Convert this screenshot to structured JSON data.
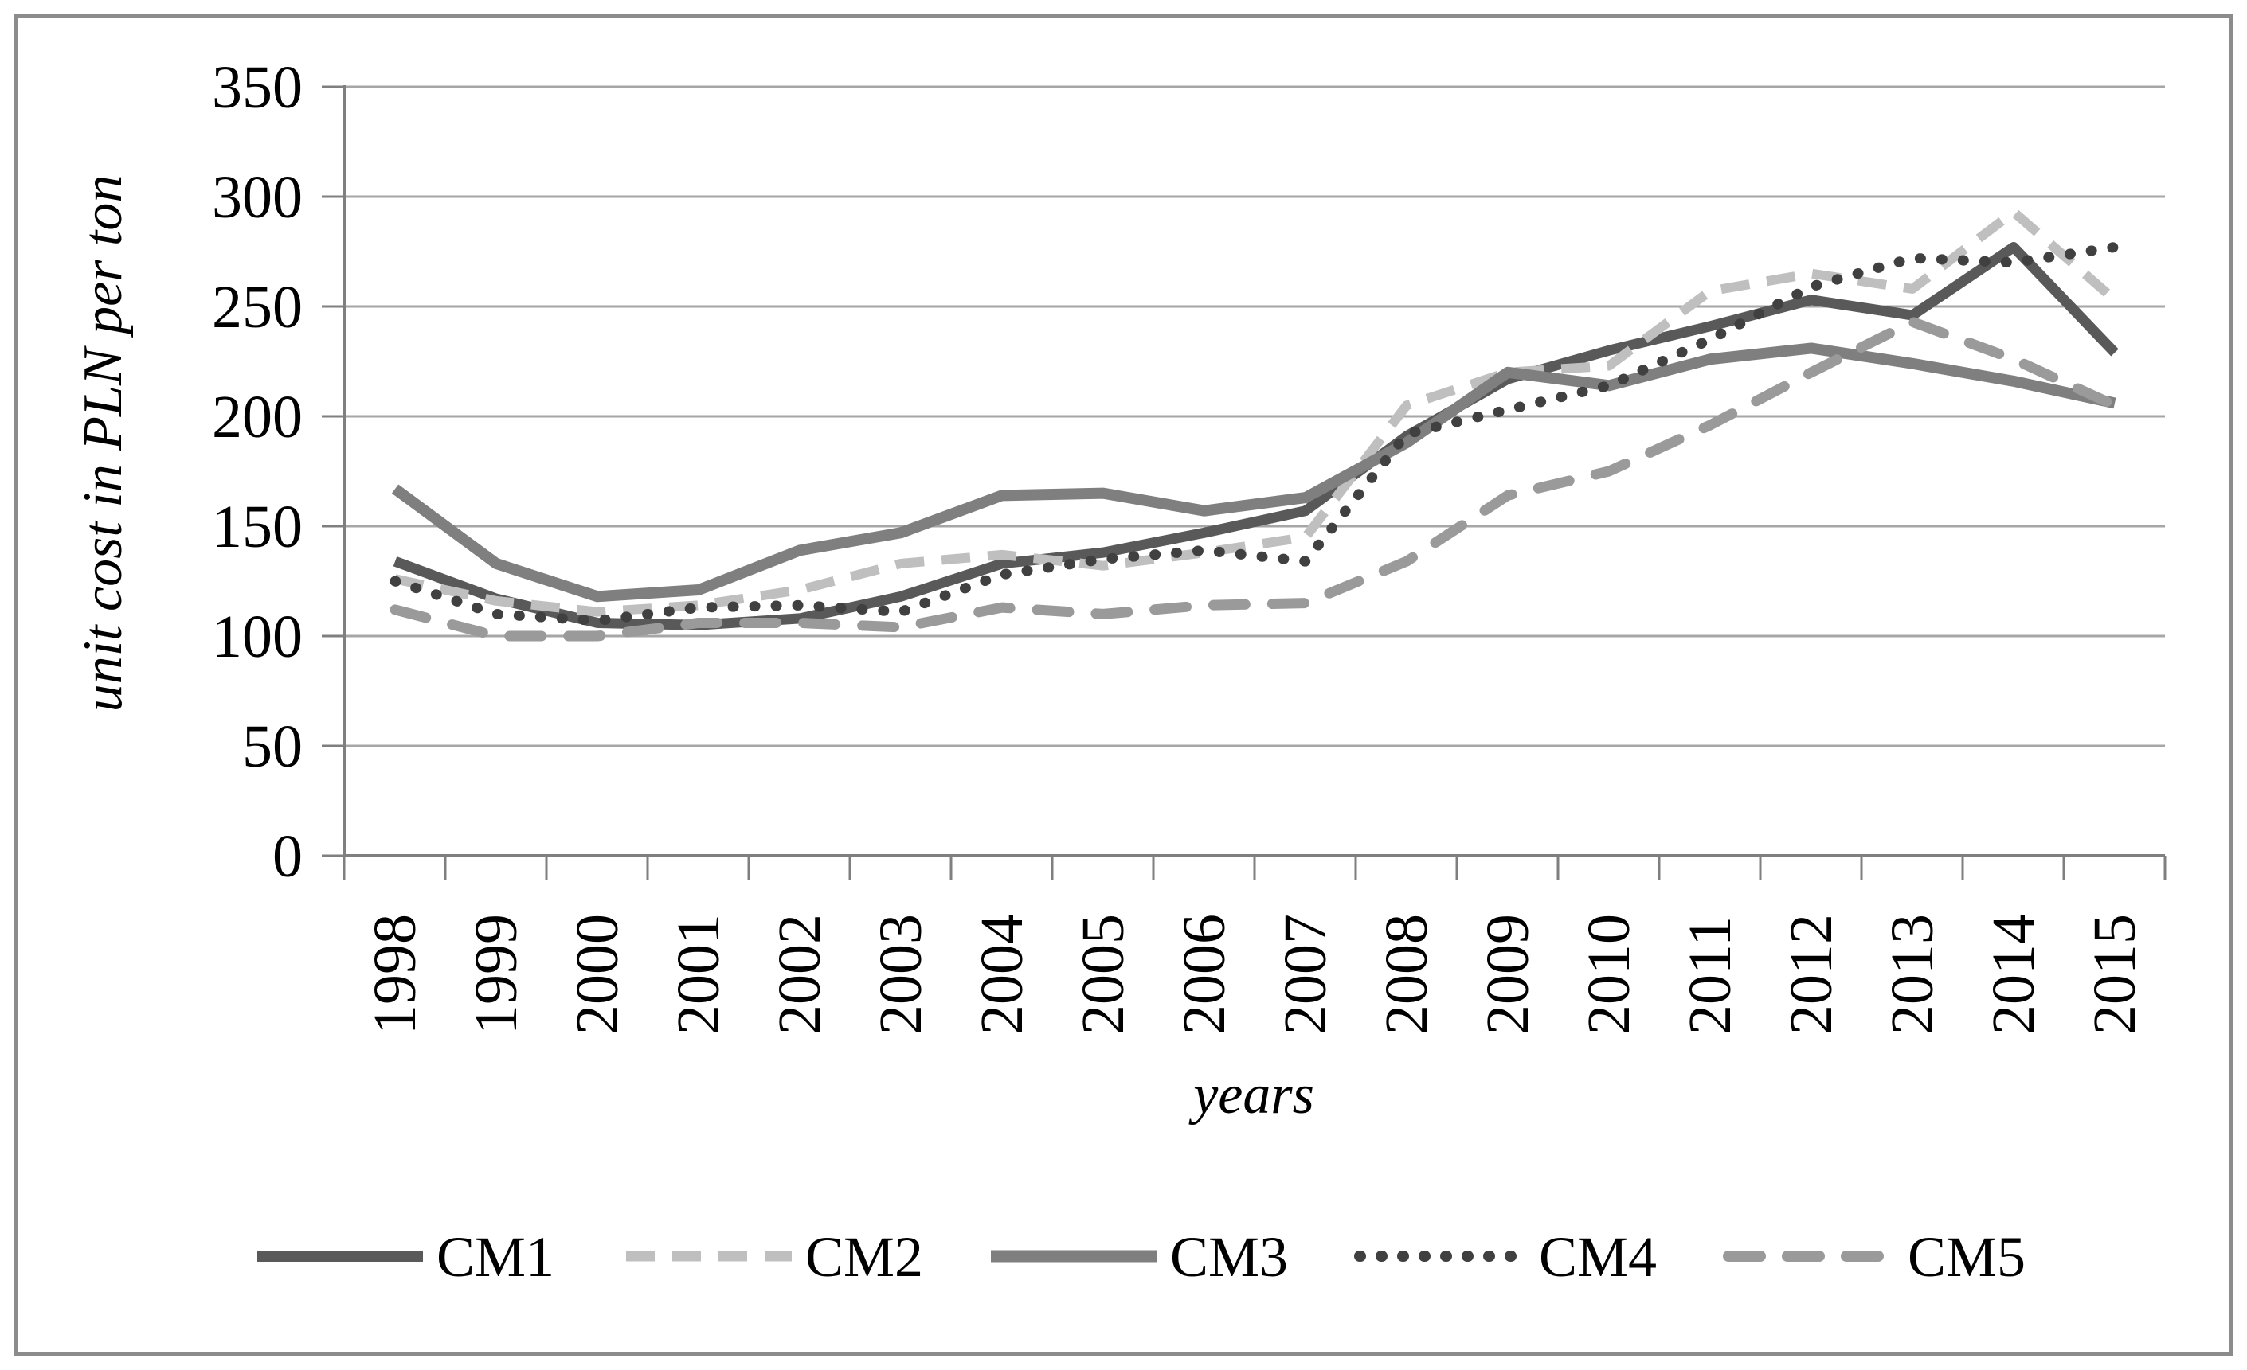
{
  "chart_data": {
    "type": "line",
    "title": "",
    "xlabel": "years",
    "ylabel": "unit cost in PLN per ton",
    "categories": [
      "1998",
      "1999",
      "2000",
      "2001",
      "2002",
      "2003",
      "2004",
      "2005",
      "2006",
      "2007",
      "2008",
      "2009",
      "2010",
      "2011",
      "2012",
      "2013",
      "2014",
      "2015"
    ],
    "ylim": [
      0,
      350
    ],
    "ytick_step": 50,
    "ytick_labels": [
      "0",
      "50",
      "100",
      "150",
      "200",
      "250",
      "300",
      "350"
    ],
    "grid": true,
    "legend_position": "bottom",
    "units": "PLN per ton",
    "series": [
      {
        "name": "CM1",
        "style": "solid",
        "color": "#595959",
        "width": 13,
        "values": [
          134,
          117,
          106,
          105,
          108,
          118,
          133,
          138,
          147,
          157,
          191,
          217,
          230,
          241,
          253,
          246,
          277,
          229
        ]
      },
      {
        "name": "CM2",
        "style": "dashed",
        "color": "#bfbfbf",
        "width": 12,
        "values": [
          126,
          116,
          111,
          114,
          121,
          133,
          137,
          132,
          138,
          145,
          205,
          220,
          223,
          257,
          265,
          258,
          293,
          253
        ]
      },
      {
        "name": "CM3",
        "style": "solid",
        "color": "#7f7f7f",
        "width": 14,
        "values": [
          167,
          133,
          118,
          121,
          139,
          147,
          164,
          165,
          157,
          163,
          188,
          220,
          214,
          226,
          231,
          224,
          216,
          206
        ]
      },
      {
        "name": "CM4",
        "style": "dotted",
        "color": "#404040",
        "width": 13,
        "values": [
          125,
          110,
          107,
          113,
          114,
          111,
          128,
          135,
          139,
          134,
          192,
          203,
          214,
          235,
          259,
          272,
          270,
          277
        ]
      },
      {
        "name": "CM5",
        "style": "long-dash",
        "color": "#9a9a9a",
        "width": 13,
        "values": [
          112,
          100,
          100,
          106,
          106,
          104,
          113,
          110,
          114,
          115,
          134,
          164,
          175,
          196,
          220,
          243,
          226,
          205
        ]
      }
    ]
  },
  "colors": {
    "background": "#ffffff",
    "gridline": "#a6a6a6",
    "axis": "#7f7f7f",
    "border": "#8c8c8c",
    "text": "#000000"
  }
}
